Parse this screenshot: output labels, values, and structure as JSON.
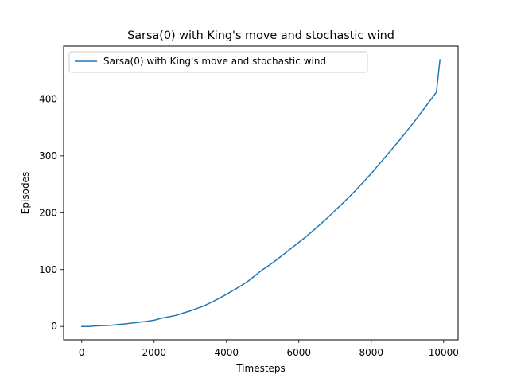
{
  "chart_data": {
    "type": "line",
    "title": "Sarsa(0) with King's move and stochastic wind",
    "xlabel": "Timesteps",
    "ylabel": "Episodes",
    "xlim": [
      -500,
      10400
    ],
    "ylim": [
      -23.5,
      493
    ],
    "xticks": [
      0,
      2000,
      4000,
      6000,
      8000,
      10000
    ],
    "yticks": [
      0,
      100,
      200,
      300,
      400
    ],
    "xtick_labels": [
      "0",
      "2000",
      "4000",
      "6000",
      "8000",
      "10000"
    ],
    "ytick_labels": [
      "0",
      "100",
      "200",
      "300",
      "400"
    ],
    "legend_position": "top-left",
    "series": [
      {
        "name": "Sarsa(0) with King's move and stochastic wind",
        "color": "#1f77b4",
        "x": [
          0,
          200,
          400,
          600,
          800,
          1000,
          1200,
          1400,
          1600,
          1800,
          2000,
          2200,
          2400,
          2600,
          2800,
          3000,
          3200,
          3400,
          3600,
          3800,
          4000,
          4200,
          4400,
          4600,
          4800,
          5000,
          5200,
          5400,
          5600,
          5800,
          6000,
          6200,
          6400,
          6600,
          6800,
          7000,
          7200,
          7400,
          7600,
          7800,
          8000,
          8200,
          8400,
          8600,
          8800,
          9000,
          9200,
          9400,
          9600,
          9800,
          9900
        ],
        "y": [
          0,
          0,
          1,
          1.5,
          2,
          3.5,
          4.5,
          6,
          7.5,
          9,
          11,
          14.5,
          17,
          19.5,
          23.5,
          27.5,
          32,
          37,
          43,
          49.5,
          56.5,
          64,
          71.5,
          80,
          90,
          100,
          108.5,
          118,
          128,
          138,
          148,
          158,
          169,
          180,
          191.5,
          204,
          216,
          228.5,
          241.5,
          255,
          269,
          284,
          299,
          314,
          329,
          345,
          361,
          378,
          395,
          412,
          469
        ]
      }
    ]
  }
}
